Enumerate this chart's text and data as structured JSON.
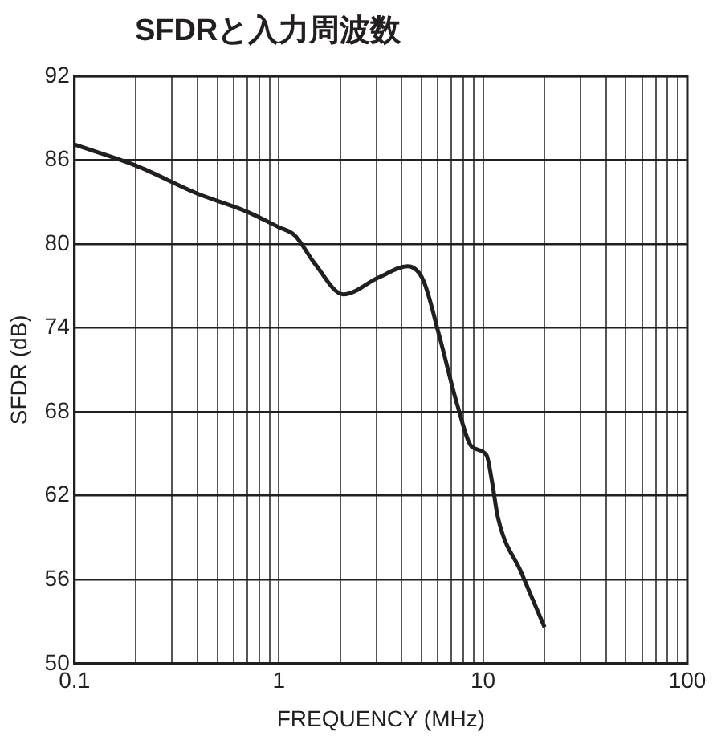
{
  "chart_data": {
    "type": "line",
    "title": "SFDRと入力周波数",
    "xlabel": "FREQUENCY (MHz)",
    "ylabel": "SFDR (dB)",
    "log": "x",
    "grid": true,
    "legend": false,
    "marker": "none",
    "line_style": "solid",
    "xlim": [
      0.1,
      100
    ],
    "ylim": [
      50,
      92
    ],
    "xticks": [
      0.1,
      {
        "value": 0.2,
        "label": null
      },
      {
        "value": 0.3,
        "label": null
      },
      {
        "value": 0.4,
        "label": null
      },
      {
        "value": 0.5,
        "label": null
      },
      {
        "value": 0.6,
        "label": null
      },
      {
        "value": 0.7,
        "label": null
      },
      {
        "value": 0.8,
        "label": null
      },
      {
        "value": 0.9,
        "label": null
      },
      1,
      {
        "value": 2,
        "label": null
      },
      {
        "value": 3,
        "label": null
      },
      {
        "value": 4,
        "label": null
      },
      {
        "value": 5,
        "label": null
      },
      {
        "value": 6,
        "label": null
      },
      {
        "value": 7,
        "label": null
      },
      {
        "value": 8,
        "label": null
      },
      {
        "value": 9,
        "label": null
      },
      10,
      {
        "value": 20,
        "label": null
      },
      {
        "value": 30,
        "label": null
      },
      {
        "value": 40,
        "label": null
      },
      {
        "value": 50,
        "label": null
      },
      {
        "value": 60,
        "label": null
      },
      {
        "value": 70,
        "label": null
      },
      {
        "value": 80,
        "label": null
      },
      {
        "value": 90,
        "label": null
      },
      100
    ],
    "yticks": [
      50,
      56,
      62,
      68,
      74,
      80,
      86,
      92
    ],
    "x": [
      0.1,
      0.2,
      0.4,
      0.7,
      1,
      1.2,
      1.5,
      2.07,
      3.08,
      4.27,
      5.1,
      6.14,
      7.48,
      8.81,
      10.4,
      11.1,
      11.8,
      15.4,
      20
    ],
    "series": [
      {
        "color": "#231f20",
        "values": [
          87.1,
          85.6,
          83.6,
          82.3,
          81.2,
          80.6,
          78.6,
          76.4,
          77.6,
          78.4,
          77.4,
          73.3,
          68.5,
          65.5,
          64.9,
          62.9,
          60.5,
          56.5,
          52.6
        ]
      }
    ]
  }
}
